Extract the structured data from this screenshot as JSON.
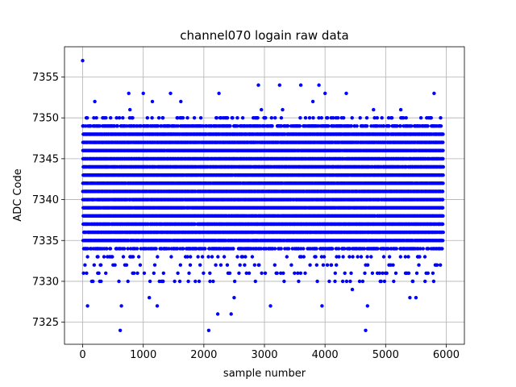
{
  "chart_data": {
    "type": "scatter",
    "title": "channel070 logain raw data",
    "xlabel": "sample number",
    "ylabel": "ADC Code",
    "xlim": [
      -300,
      6300
    ],
    "ylim": [
      7322.3,
      7358.7
    ],
    "xticks": [
      0,
      1000,
      2000,
      3000,
      4000,
      5000,
      6000
    ],
    "yticks": [
      7325,
      7330,
      7335,
      7340,
      7345,
      7350,
      7355
    ],
    "grid": true,
    "marker_color": "#0000ff",
    "n_samples": 5950,
    "x_step": 1,
    "dense_band": {
      "levels": [
        7334,
        7335,
        7336,
        7337,
        7338,
        7339,
        7340,
        7341,
        7342,
        7343,
        7344,
        7345,
        7346,
        7347,
        7348,
        7349
      ],
      "x_range": [
        0,
        5950
      ]
    },
    "outliers": [
      [
        0,
        7357
      ],
      [
        60,
        7350
      ],
      [
        80,
        7327
      ],
      [
        150,
        7330
      ],
      [
        200,
        7352
      ],
      [
        250,
        7331
      ],
      [
        300,
        7332
      ],
      [
        620,
        7324
      ],
      [
        640,
        7327
      ],
      [
        760,
        7353
      ],
      [
        780,
        7351
      ],
      [
        1000,
        7353
      ],
      [
        1100,
        7328
      ],
      [
        1150,
        7352
      ],
      [
        1230,
        7327
      ],
      [
        1450,
        7353
      ],
      [
        1620,
        7352
      ],
      [
        2080,
        7324
      ],
      [
        2250,
        7353
      ],
      [
        2230,
        7326
      ],
      [
        2450,
        7326
      ],
      [
        2500,
        7328
      ],
      [
        2900,
        7354
      ],
      [
        2950,
        7351
      ],
      [
        3100,
        7327
      ],
      [
        3250,
        7354
      ],
      [
        3300,
        7351
      ],
      [
        3600,
        7354
      ],
      [
        3800,
        7352
      ],
      [
        3900,
        7354
      ],
      [
        3950,
        7327
      ],
      [
        4000,
        7353
      ],
      [
        4350,
        7353
      ],
      [
        4450,
        7329
      ],
      [
        4670,
        7324
      ],
      [
        4700,
        7327
      ],
      [
        4800,
        7351
      ],
      [
        5050,
        7350
      ],
      [
        5250,
        7351
      ],
      [
        5400,
        7328
      ],
      [
        5500,
        7328
      ],
      [
        5650,
        7330
      ],
      [
        5800,
        7353
      ]
    ]
  }
}
